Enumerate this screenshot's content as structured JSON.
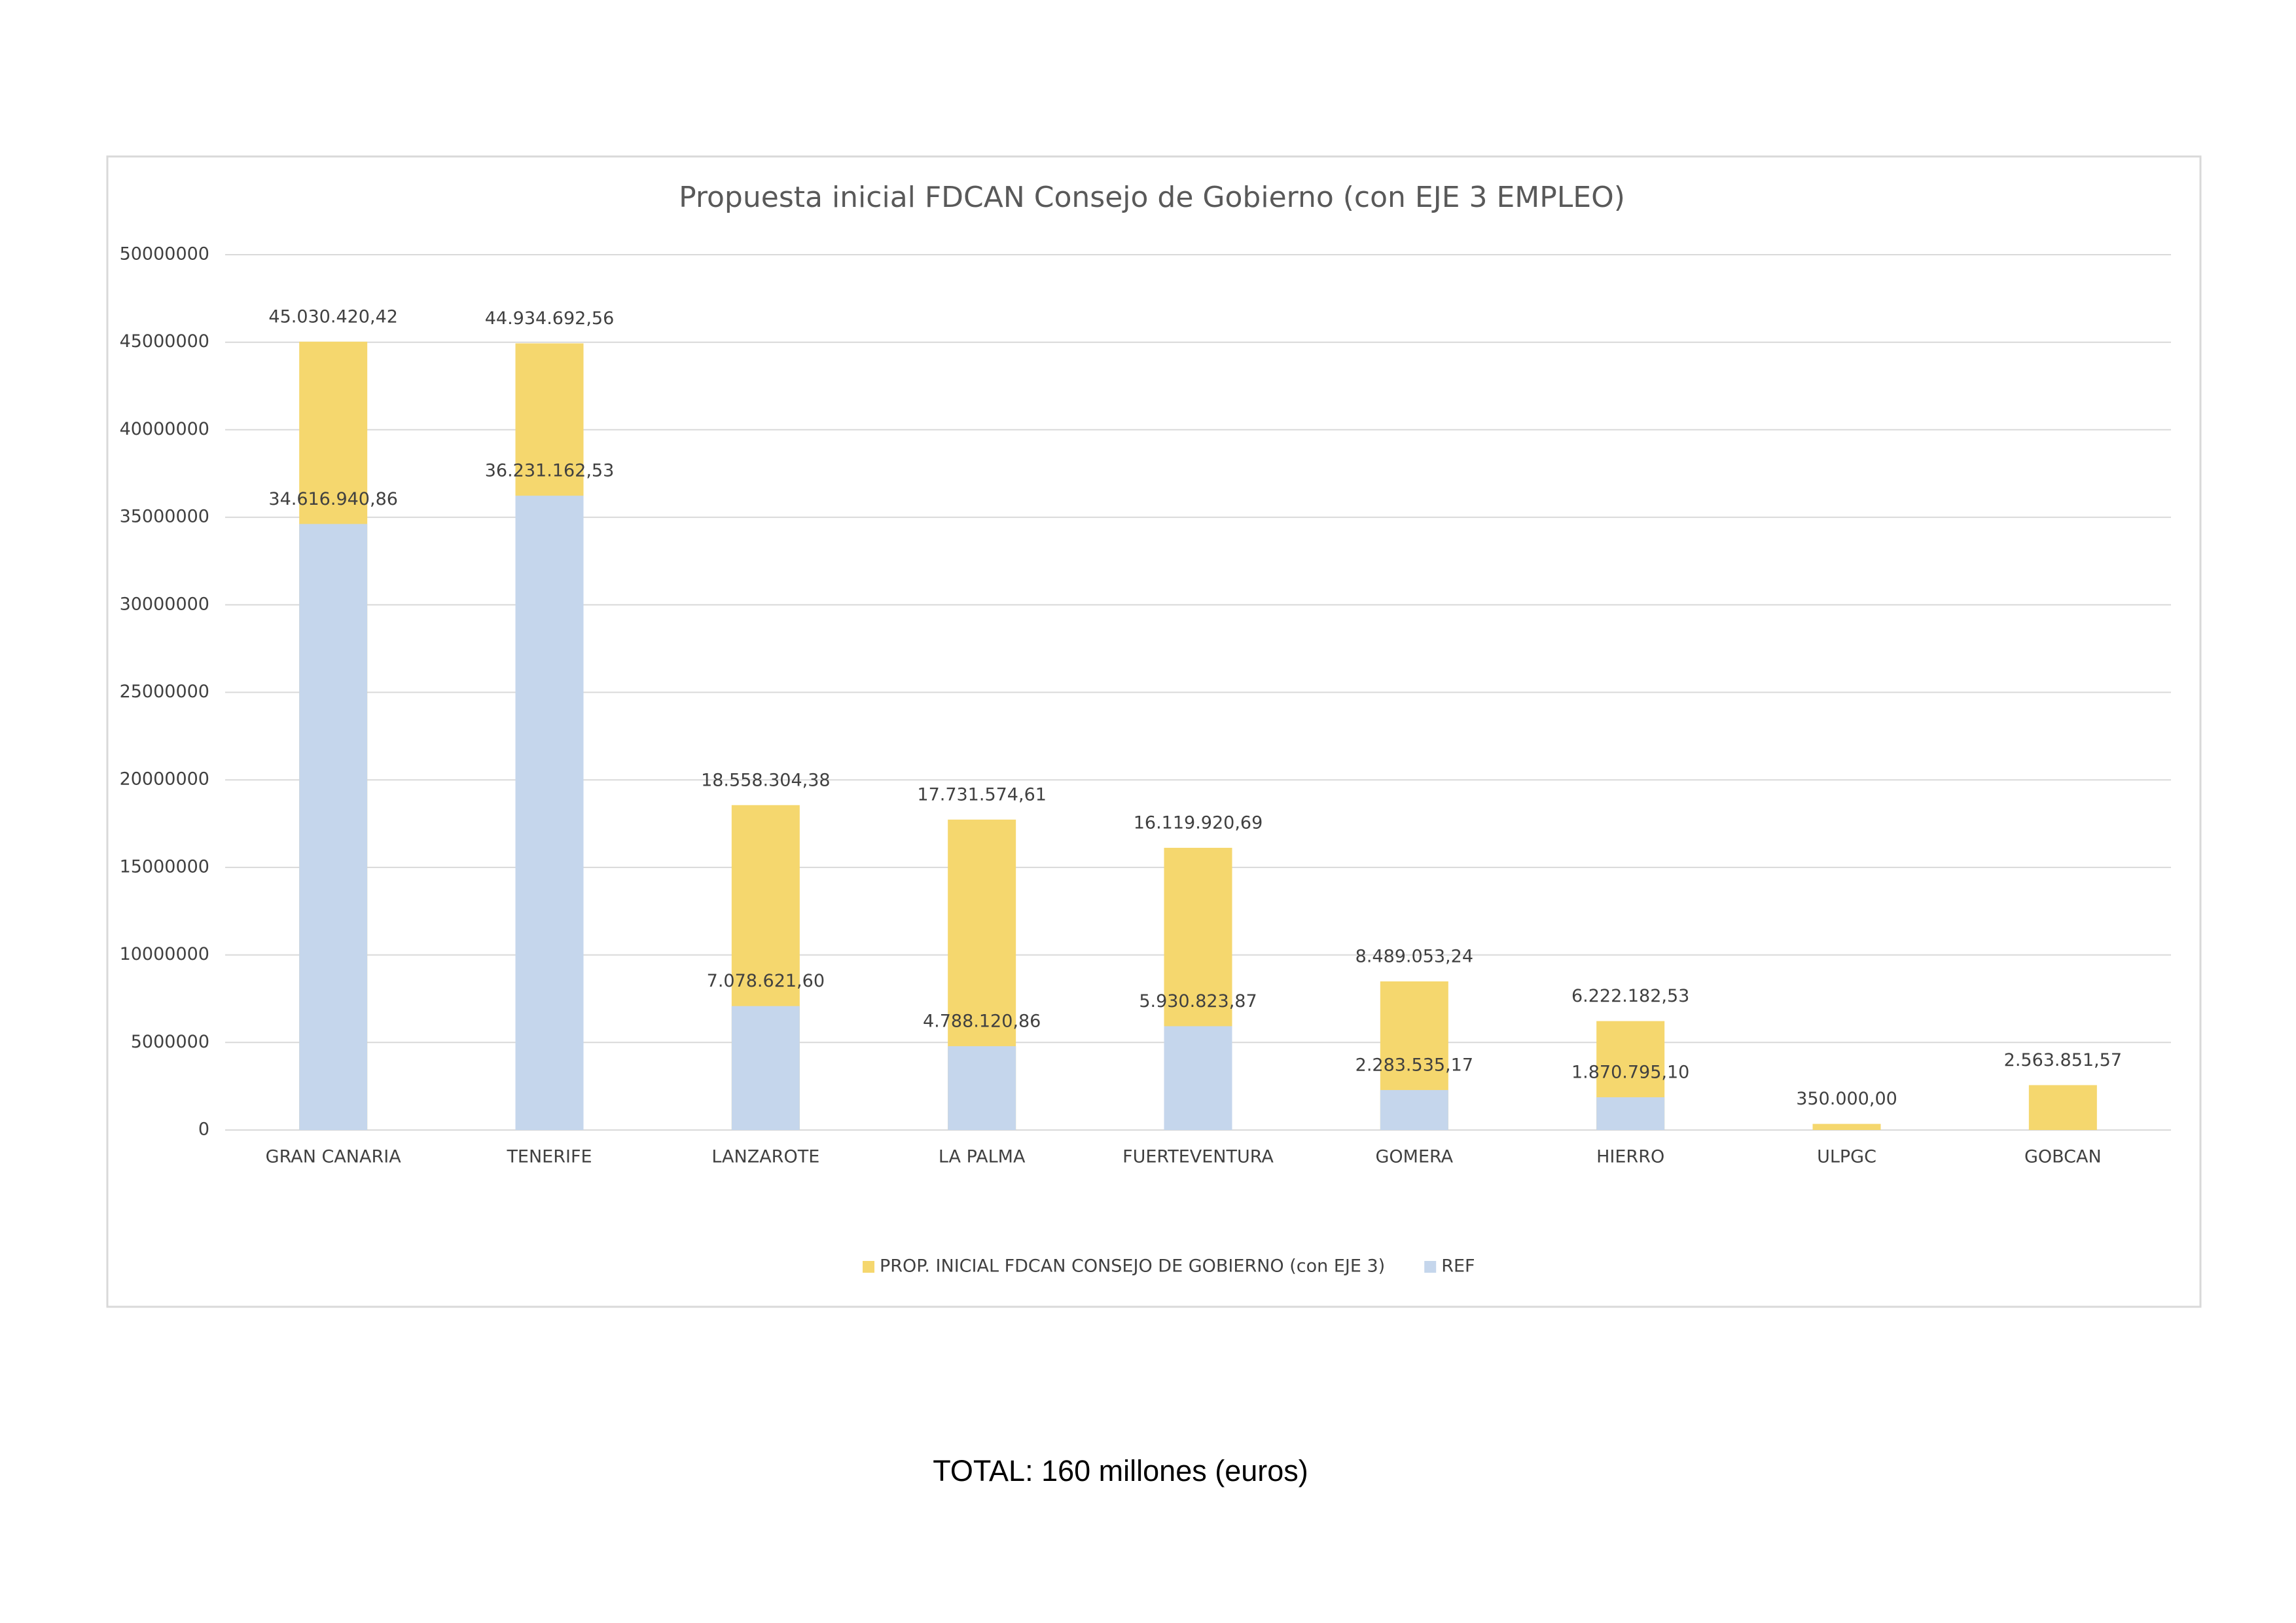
{
  "chart_data": {
    "type": "bar",
    "title": "Propuesta inicial FDCAN Consejo  de Gobierno (con EJE 3 EMPLEO)",
    "categories": [
      "GRAN CANARIA",
      "TENERIFE",
      "LANZAROTE",
      "LA PALMA",
      "FUERTEVENTURA",
      "GOMERA",
      "HIERRO",
      "ULPGC",
      "GOBCAN"
    ],
    "series": [
      {
        "name": "PROP. INICIAL FDCAN CONSEJO DE GOBIERNO (con EJE 3)",
        "color": "#f5d76e",
        "values": [
          45030420.42,
          44934692.56,
          18558304.38,
          17731574.61,
          16119920.69,
          8489053.24,
          6222182.53,
          350000.0,
          2563851.57
        ],
        "value_labels": [
          "45.030.420,42",
          "44.934.692,56",
          "18.558.304,38",
          "17.731.574,61",
          "16.119.920,69",
          "8.489.053,24",
          "6.222.182,53",
          "350.000,00",
          "2.563.851,57"
        ]
      },
      {
        "name": "REF",
        "color": "#c5d6ec",
        "values": [
          34616940.86,
          36231162.53,
          7078621.6,
          4788120.86,
          5930823.87,
          2283535.17,
          1870795.1,
          null,
          null
        ],
        "value_labels": [
          "34.616.940,86",
          "36.231.162,53",
          "7.078.621,60",
          "4.788.120,86",
          "5.930.823,87",
          "2.283.535,17",
          "1.870.795,10",
          null,
          null
        ]
      }
    ],
    "overlap": true,
    "ylim": [
      0,
      50000000
    ],
    "yticks": [
      0,
      5000000,
      10000000,
      15000000,
      20000000,
      25000000,
      30000000,
      35000000,
      40000000,
      45000000,
      50000000
    ],
    "grid": true,
    "legend": "bottom",
    "annotation": "TOTAL: 160 millones (euros)"
  }
}
